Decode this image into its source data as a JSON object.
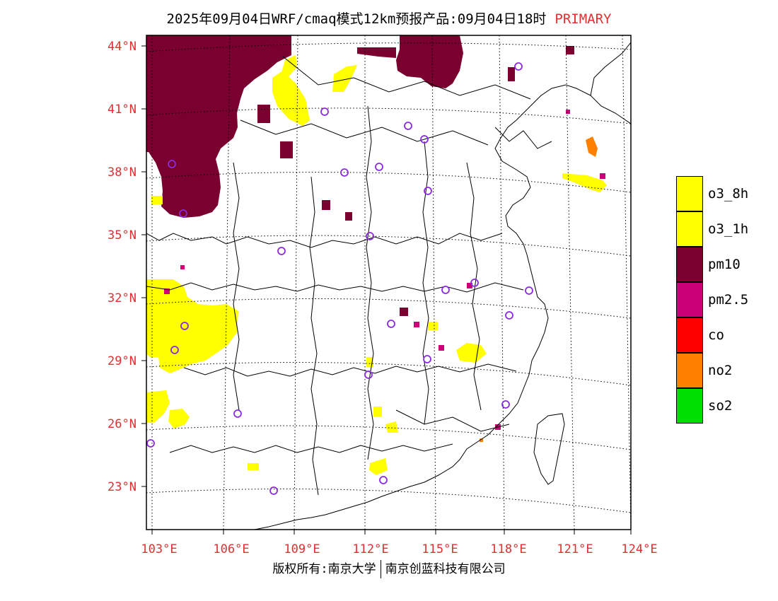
{
  "title": {
    "main": "2025年09月04日WRF/cmaq模式12km预报产品:09月04日18时",
    "tag": "PRIMARY"
  },
  "axes": {
    "lat_labels": [
      "44°N",
      "41°N",
      "38°N",
      "35°N",
      "32°N",
      "29°N",
      "26°N",
      "23°N"
    ],
    "lon_labels": [
      "103°E",
      "106°E",
      "109°E",
      "112°E",
      "115°E",
      "118°E",
      "121°E",
      "124°E"
    ],
    "label_color": "#e03030"
  },
  "legend": [
    {
      "label": "o3_8h",
      "color": "#ffff00"
    },
    {
      "label": "o3_1h",
      "color": "#ffff00"
    },
    {
      "label": "pm10",
      "color": "#7a0030"
    },
    {
      "label": "pm2.5",
      "color": "#cc0077"
    },
    {
      "label": "co",
      "color": "#ff0000"
    },
    {
      "label": "no2",
      "color": "#ff8000"
    },
    {
      "label": "so2",
      "color": "#00e000"
    }
  ],
  "footer": {
    "left": "版权所有:南京大学",
    "right": "南京创蓝科技有限公司"
  }
}
